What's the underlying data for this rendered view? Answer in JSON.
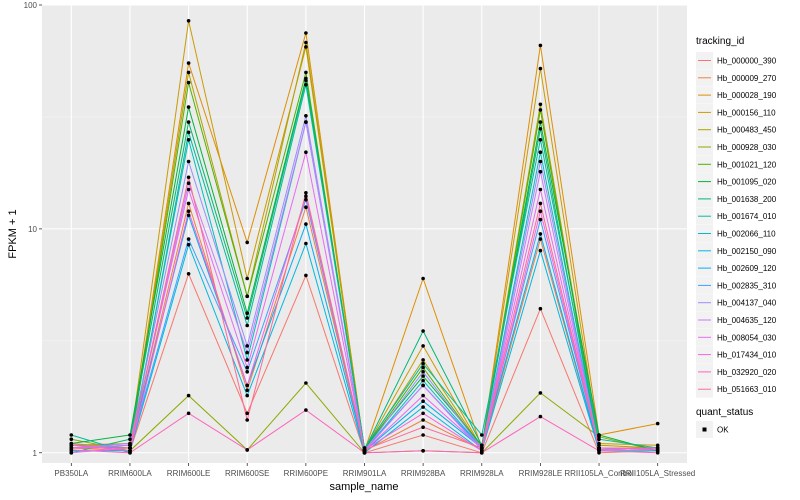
{
  "chart_data": {
    "type": "line",
    "xlabel": "sample_name",
    "ylabel": "FPKM + 1",
    "y_scale": "log10",
    "ylim": [
      0.9,
      100
    ],
    "y_ticks": [
      "1",
      "10",
      "100"
    ],
    "grid": true,
    "legend_placement": "right",
    "categories": [
      "PB350LA",
      "RRIM600LA",
      "RRIM600LE",
      "RRIM600SE",
      "RRIM600PE",
      "RRIM901LA",
      "RRIM928BA",
      "RRIM928LA",
      "RRIM928LE",
      "RRII105LA_Control",
      "RRII105LA_Stressed"
    ],
    "color_legend": {
      "title": "tracking_id",
      "series": [
        {
          "name": "Hb_000000_390",
          "color": "#F8766D",
          "values": [
            1.05,
            1.02,
            6.3,
            1.5,
            6.2,
            1.0,
            1.2,
            1.0,
            4.4,
            1.0,
            1.02
          ]
        },
        {
          "name": "Hb_000009_270",
          "color": "#EE8043",
          "values": [
            1.1,
            1.05,
            13.0,
            1.9,
            12.5,
            1.02,
            1.4,
            1.03,
            9.0,
            1.03,
            1.05
          ]
        },
        {
          "name": "Hb_000028_190",
          "color": "#DF8E00",
          "values": [
            1.05,
            1.08,
            55.0,
            8.7,
            75.0,
            1.02,
            6.0,
            1.05,
            66.0,
            1.2,
            1.35
          ]
        },
        {
          "name": "Hb_000156_110",
          "color": "#CA9A00",
          "values": [
            1.08,
            1.1,
            85.0,
            6.0,
            65.0,
            1.03,
            3.0,
            1.05,
            52.0,
            1.1,
            1.08
          ]
        },
        {
          "name": "Hb_000483_450",
          "color": "#AFA300",
          "values": [
            1.08,
            1.05,
            50.0,
            5.0,
            68.0,
            1.03,
            2.6,
            1.05,
            36.0,
            1.08,
            1.05
          ]
        },
        {
          "name": "Hb_000928_030",
          "color": "#8BAA00",
          "values": [
            1.15,
            1.02,
            1.8,
            1.03,
            2.05,
            1.0,
            1.02,
            1.0,
            1.85,
            1.18,
            1.02
          ]
        },
        {
          "name": "Hb_001021_120",
          "color": "#50B000",
          "values": [
            1.05,
            1.05,
            45.0,
            5.0,
            50.0,
            1.03,
            2.4,
            1.05,
            34.0,
            1.05,
            1.05
          ]
        },
        {
          "name": "Hb_001095_020",
          "color": "#00B43C",
          "values": [
            1.1,
            1.2,
            35.0,
            4.2,
            47.0,
            1.05,
            2.2,
            1.08,
            30.0,
            1.2,
            1.02
          ]
        },
        {
          "name": "Hb_001638_200",
          "color": "#00B874",
          "values": [
            1.0,
            1.15,
            30.0,
            4.0,
            46.0,
            1.03,
            3.5,
            1.08,
            28.0,
            1.05,
            1.03
          ]
        },
        {
          "name": "Hb_001674_010",
          "color": "#00BB9F",
          "values": [
            1.2,
            1.0,
            27.0,
            3.7,
            44.0,
            1.05,
            2.5,
            1.2,
            25.0,
            1.15,
            1.05
          ]
        },
        {
          "name": "Hb_002066_110",
          "color": "#00BDC3",
          "values": [
            1.05,
            1.05,
            25.0,
            2.6,
            30.0,
            1.02,
            2.1,
            1.05,
            22.0,
            1.05,
            1.05
          ]
        },
        {
          "name": "Hb_002150_090",
          "color": "#00B8E0",
          "values": [
            1.02,
            1.02,
            8.5,
            1.8,
            8.6,
            1.0,
            1.6,
            1.02,
            8.0,
            1.02,
            1.02
          ]
        },
        {
          "name": "Hb_002609_120",
          "color": "#00AEF6",
          "values": [
            1.05,
            1.08,
            11.5,
            2.0,
            10.5,
            1.02,
            1.7,
            1.05,
            9.5,
            1.03,
            1.05
          ]
        },
        {
          "name": "Hb_002835_310",
          "color": "#3AA2FF",
          "values": [
            1.08,
            1.05,
            9.0,
            2.3,
            13.5,
            1.03,
            2.0,
            1.05,
            11.0,
            1.05,
            1.05
          ]
        },
        {
          "name": "Hb_004137_040",
          "color": "#9590FF",
          "values": [
            1.05,
            1.1,
            20.0,
            3.0,
            32.0,
            1.02,
            2.3,
            1.05,
            20.0,
            1.05,
            1.05
          ]
        },
        {
          "name": "Hb_004635_120",
          "color": "#C77CFF",
          "values": [
            1.0,
            1.05,
            16.0,
            2.8,
            30.0,
            1.02,
            2.0,
            1.03,
            18.0,
            1.03,
            1.05
          ]
        },
        {
          "name": "Hb_008054_030",
          "color": "#E76BF3",
          "values": [
            1.05,
            1.08,
            15.0,
            2.4,
            22.0,
            1.02,
            1.8,
            1.05,
            15.0,
            1.05,
            1.05
          ]
        },
        {
          "name": "Hb_017434_010",
          "color": "#F763E0",
          "values": [
            1.08,
            1.02,
            12.0,
            2.0,
            14.0,
            1.03,
            1.5,
            1.02,
            12.0,
            1.05,
            1.03
          ]
        },
        {
          "name": "Hb_032920_020",
          "color": "#FF62BC",
          "values": [
            1.03,
            1.0,
            1.5,
            1.03,
            1.55,
            1.0,
            1.02,
            1.0,
            1.45,
            1.02,
            1.0
          ]
        },
        {
          "name": "Hb_051663_010",
          "color": "#FD6A96",
          "values": [
            1.05,
            1.05,
            17.0,
            1.4,
            14.5,
            1.03,
            1.3,
            1.05,
            13.0,
            1.05,
            1.05
          ]
        }
      ]
    },
    "shape_legend": {
      "title": "quant_status",
      "items": [
        {
          "label": "OK"
        }
      ]
    }
  }
}
